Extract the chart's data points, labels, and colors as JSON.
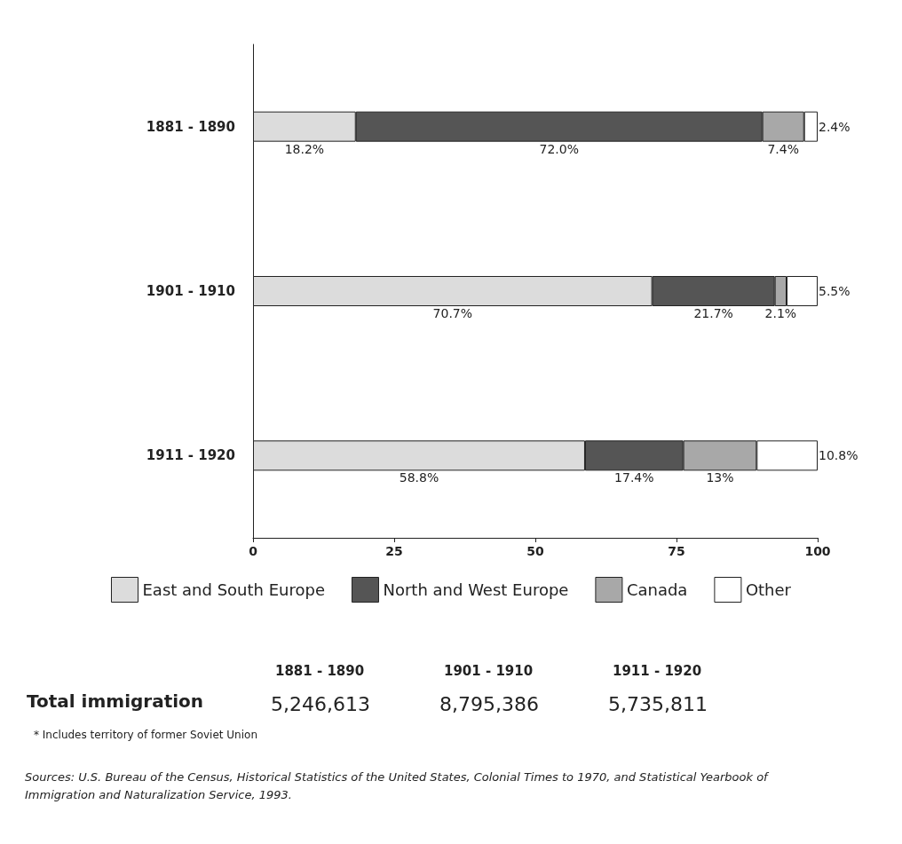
{
  "chart_data": {
    "type": "bar",
    "orientation": "horizontal",
    "stacked": true,
    "categories": [
      "1881 - 1890",
      "1901 - 1910",
      "1911 - 1920"
    ],
    "series": [
      {
        "name": "East and South Europe",
        "color": "#dcdcdc",
        "values": [
          18.2,
          70.7,
          58.8
        ],
        "value_labels": [
          "18.2%",
          "70.7%",
          "58.8%"
        ]
      },
      {
        "name": "North and West Europe",
        "color": "#555555",
        "values": [
          72.0,
          21.7,
          17.4
        ],
        "value_labels": [
          "72.0%",
          "21.7%",
          "17.4%"
        ]
      },
      {
        "name": "Canada",
        "color": "#a8a8a8",
        "values": [
          7.4,
          2.1,
          13
        ],
        "value_labels": [
          "7.4%",
          "2.1%",
          "13%"
        ]
      },
      {
        "name": "Other",
        "color": "#ffffff",
        "values": [
          2.4,
          5.5,
          10.8
        ],
        "value_labels": [
          "2.4%",
          "5.5%",
          "10.8%"
        ]
      }
    ],
    "xlim": [
      0,
      100
    ],
    "xticks": [
      0,
      25,
      50,
      75,
      100
    ],
    "grid": false,
    "legend": "bottom",
    "annotations": [
      "Total immigration",
      "1881 - 1890",
      "1901 - 1910",
      "1911 - 1920",
      "5,246,613",
      "8,795,386",
      "5,735,811",
      "* Includes territory of former Soviet Union",
      "Sources: U.S. Bureau of the Census, Historical Statistics of the United States, Colonial Times to 1970, and Statistical Yearbook of Immigration and Naturalization Service, 1993."
    ]
  }
}
